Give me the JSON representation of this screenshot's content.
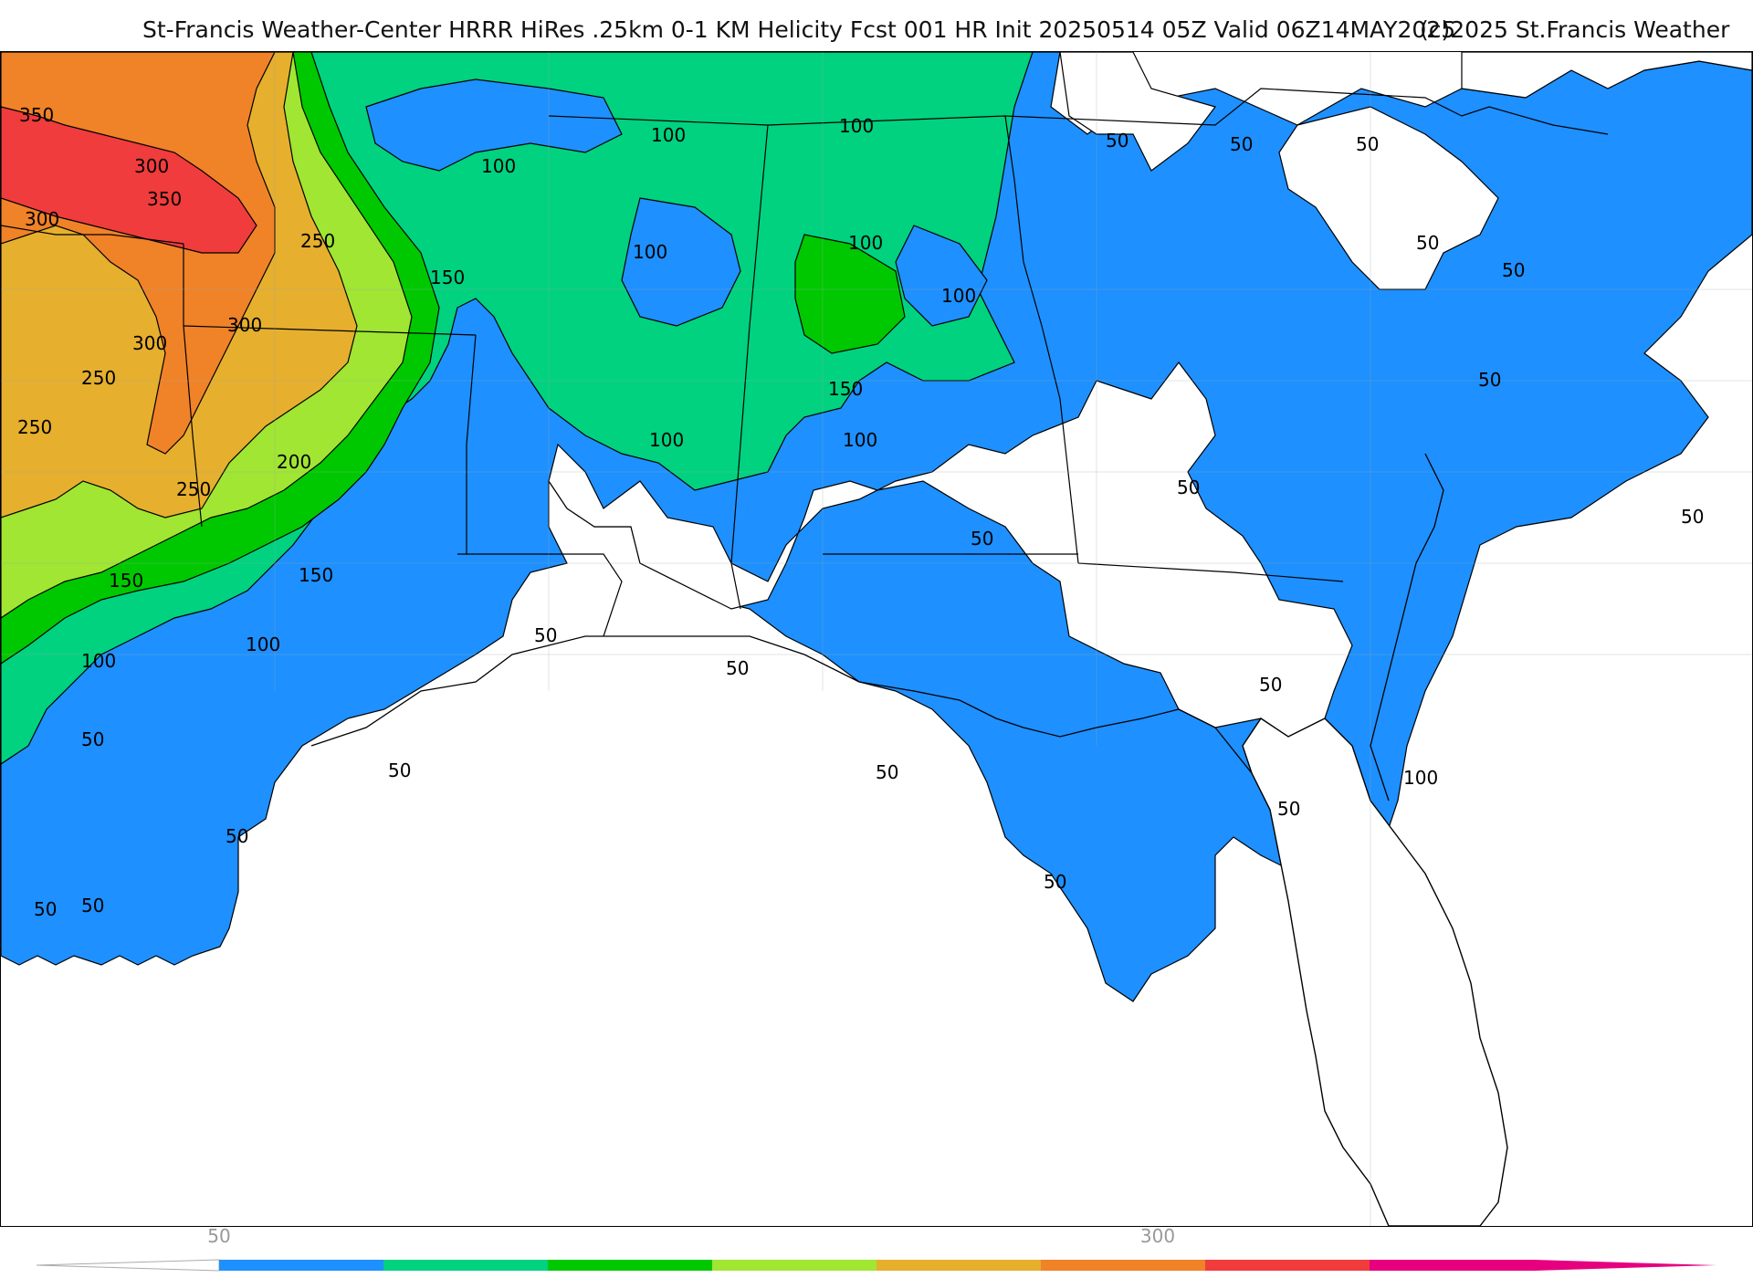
{
  "title": {
    "main": "St-Francis Weather-Center HRRR HiRes .25km 0-1 KM Helicity Fcst 001 HR Init 20250514 05Z  Valid 06Z14MAY2025",
    "copyright": "(c)2025 St.Francis Weather"
  },
  "legend": {
    "ticks": [
      "50",
      "300"
    ],
    "colors": [
      "#1e90ff",
      "#00d27f",
      "#00c800",
      "#a0e632",
      "#e6af2d",
      "#f08228",
      "#f03c3c",
      "#e6007f"
    ]
  },
  "map": {
    "fill_colors": {
      "water": "#ffffff",
      "band_50": "#1e90ff",
      "band_100": "#00d27f",
      "band_150": "#00c800",
      "band_200": "#a0e632",
      "band_250": "#e6af2d",
      "band_300": "#f08228",
      "band_350": "#f03c3c"
    },
    "contour_labels": [
      "350",
      "300",
      "350",
      "300",
      "250",
      "300",
      "300",
      "250",
      "250",
      "200",
      "250",
      "150",
      "150",
      "150",
      "100",
      "100",
      "50",
      "50",
      "50",
      "50",
      "100",
      "100",
      "100",
      "100",
      "100",
      "100",
      "150",
      "100",
      "100",
      "50",
      "50",
      "50",
      "50",
      "50",
      "50",
      "50",
      "50",
      "50",
      "50",
      "50",
      "50",
      "50",
      "50",
      "50",
      "100",
      "50"
    ]
  }
}
